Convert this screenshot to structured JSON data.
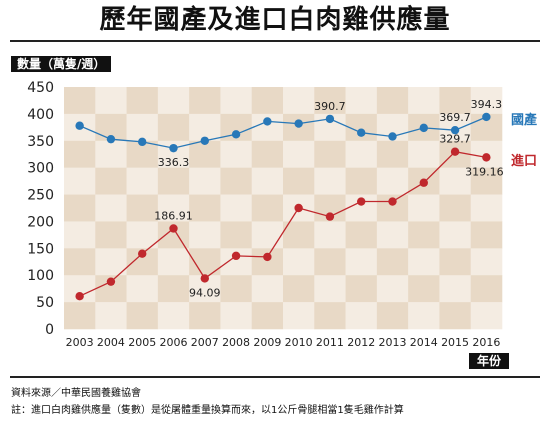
{
  "chart_data": {
    "type": "line",
    "title": "歷年國產及進口白肉雞供應量",
    "ylabel": "數量（萬隻/週）",
    "xlabel": "年份",
    "ylim": [
      0,
      450
    ],
    "yticks": [
      0,
      50,
      100,
      150,
      200,
      250,
      300,
      350,
      400,
      450
    ],
    "categories": [
      "2003",
      "2004",
      "2005",
      "2006",
      "2007",
      "2008",
      "2009",
      "2010",
      "2011",
      "2012",
      "2013",
      "2014",
      "2015",
      "2016"
    ],
    "series": [
      {
        "name": "國產",
        "color": "#2878b8",
        "values": [
          378,
          353,
          348,
          336.3,
          350,
          362,
          386,
          382,
          390.7,
          365,
          358,
          374,
          369.7,
          394.3
        ]
      },
      {
        "name": "進口",
        "color": "#c0282d",
        "values": [
          61,
          88,
          140,
          186.91,
          94.09,
          136,
          134,
          225,
          209,
          237,
          237,
          272,
          329.7,
          319.16
        ]
      }
    ],
    "data_labels": [
      {
        "series": 0,
        "index": 3,
        "text": "336.3"
      },
      {
        "series": 0,
        "index": 8,
        "text": "390.7"
      },
      {
        "series": 0,
        "index": 12,
        "text": "369.7"
      },
      {
        "series": 0,
        "index": 13,
        "text": "394.3"
      },
      {
        "series": 1,
        "index": 3,
        "text": "186.91"
      },
      {
        "series": 1,
        "index": 4,
        "text": "94.09"
      },
      {
        "series": 1,
        "index": 12,
        "text": "329.7"
      },
      {
        "series": 1,
        "index": 13,
        "text": "319.16"
      }
    ],
    "background_colors": [
      "#e8d9c6",
      "#f4ece2"
    ]
  },
  "footer": {
    "source": "資料來源／中華民國養雞協會",
    "note": "註：進口白肉雞供應量（隻數）是從屠體重量換算而來，以1公斤骨腿相當1隻毛雞作計算"
  }
}
